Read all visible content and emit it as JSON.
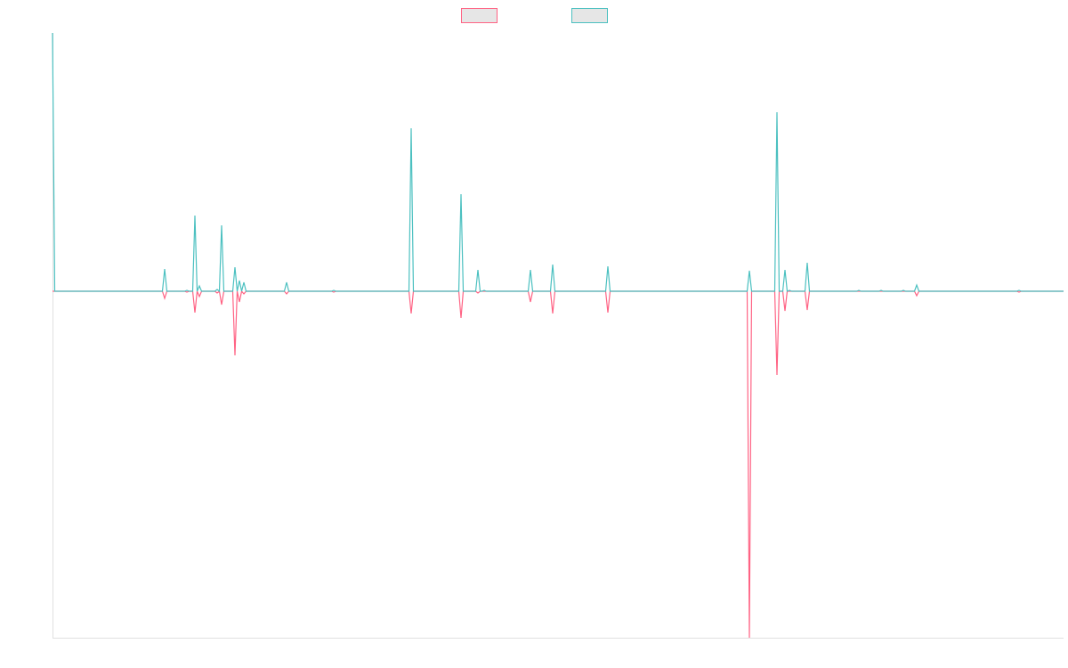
{
  "chart_data": {
    "type": "line",
    "x": [
      0,
      2.5,
      123.5,
      126,
      128.5,
      148.5,
      151,
      153.5,
      157.5,
      160,
      162.5,
      165,
      167.5,
      182.5,
      185,
      187.5,
      190,
      192.5,
      202.5,
      205,
      207.5,
      210,
      212.5,
      215,
      217.5,
      260.5,
      263,
      265.5,
      313.5,
      316,
      318.5,
      400.5,
      403,
      405.5,
      456.5,
      459,
      461.5,
      475.5,
      478,
      480.5,
      482.5,
      485,
      487.5,
      534.5,
      537,
      539.5,
      559.5,
      562,
      564.5,
      621.5,
      624,
      626.5,
      780.5,
      783,
      785.5,
      811.5,
      814,
      816.5,
      820.5,
      823,
      825.5,
      828,
      830.5,
      845.5,
      848,
      850.5,
      903.5,
      906,
      908.5,
      928.5,
      931,
      933.5,
      953.5,
      956,
      958.5,
      968.5,
      971,
      973.5,
      1083.5,
      1086,
      1088.5,
      1136
    ],
    "series": [
      {
        "color": "#ff6384",
        "values": [
          0,
          0,
          0,
          -8,
          0,
          0,
          -1,
          0,
          0,
          -24,
          0,
          -6,
          0,
          0,
          -2,
          0,
          -15,
          0,
          0,
          -72,
          0,
          -12,
          0,
          -3,
          0,
          0,
          -3,
          0,
          0,
          -1,
          0,
          0,
          -25,
          0,
          0,
          -30,
          0,
          0,
          -2,
          0,
          0,
          0,
          0,
          0,
          -12,
          0,
          0,
          -25,
          0,
          0,
          -24,
          0,
          0,
          -389,
          0,
          0,
          -94,
          0,
          0,
          -22,
          0,
          0,
          0,
          0,
          -21,
          0,
          0,
          0,
          0,
          0,
          0,
          0,
          0,
          0,
          0,
          0,
          -5,
          0,
          0,
          -1,
          0,
          0
        ]
      },
      {
        "color": "#4bc0c0",
        "values": [
          290,
          0,
          0,
          25,
          0,
          0,
          1,
          0,
          0,
          85,
          0,
          6,
          0,
          0,
          2,
          0,
          74,
          0,
          0,
          27,
          0,
          12,
          0,
          10,
          0,
          0,
          10,
          0,
          0,
          1,
          0,
          0,
          183,
          0,
          0,
          109,
          0,
          0,
          24,
          0,
          0,
          1,
          0,
          0,
          24,
          0,
          0,
          30,
          0,
          0,
          28,
          0,
          0,
          23,
          0,
          0,
          201,
          0,
          0,
          24,
          0,
          1,
          0,
          0,
          32,
          0,
          0,
          1,
          0,
          0,
          1,
          0,
          0,
          1,
          0,
          0,
          7,
          0,
          0,
          1,
          0,
          0
        ]
      }
    ],
    "xlim": [
      0,
      1136
    ],
    "ylim": [
      -389,
      290
    ],
    "grid": false,
    "legend": "top"
  }
}
